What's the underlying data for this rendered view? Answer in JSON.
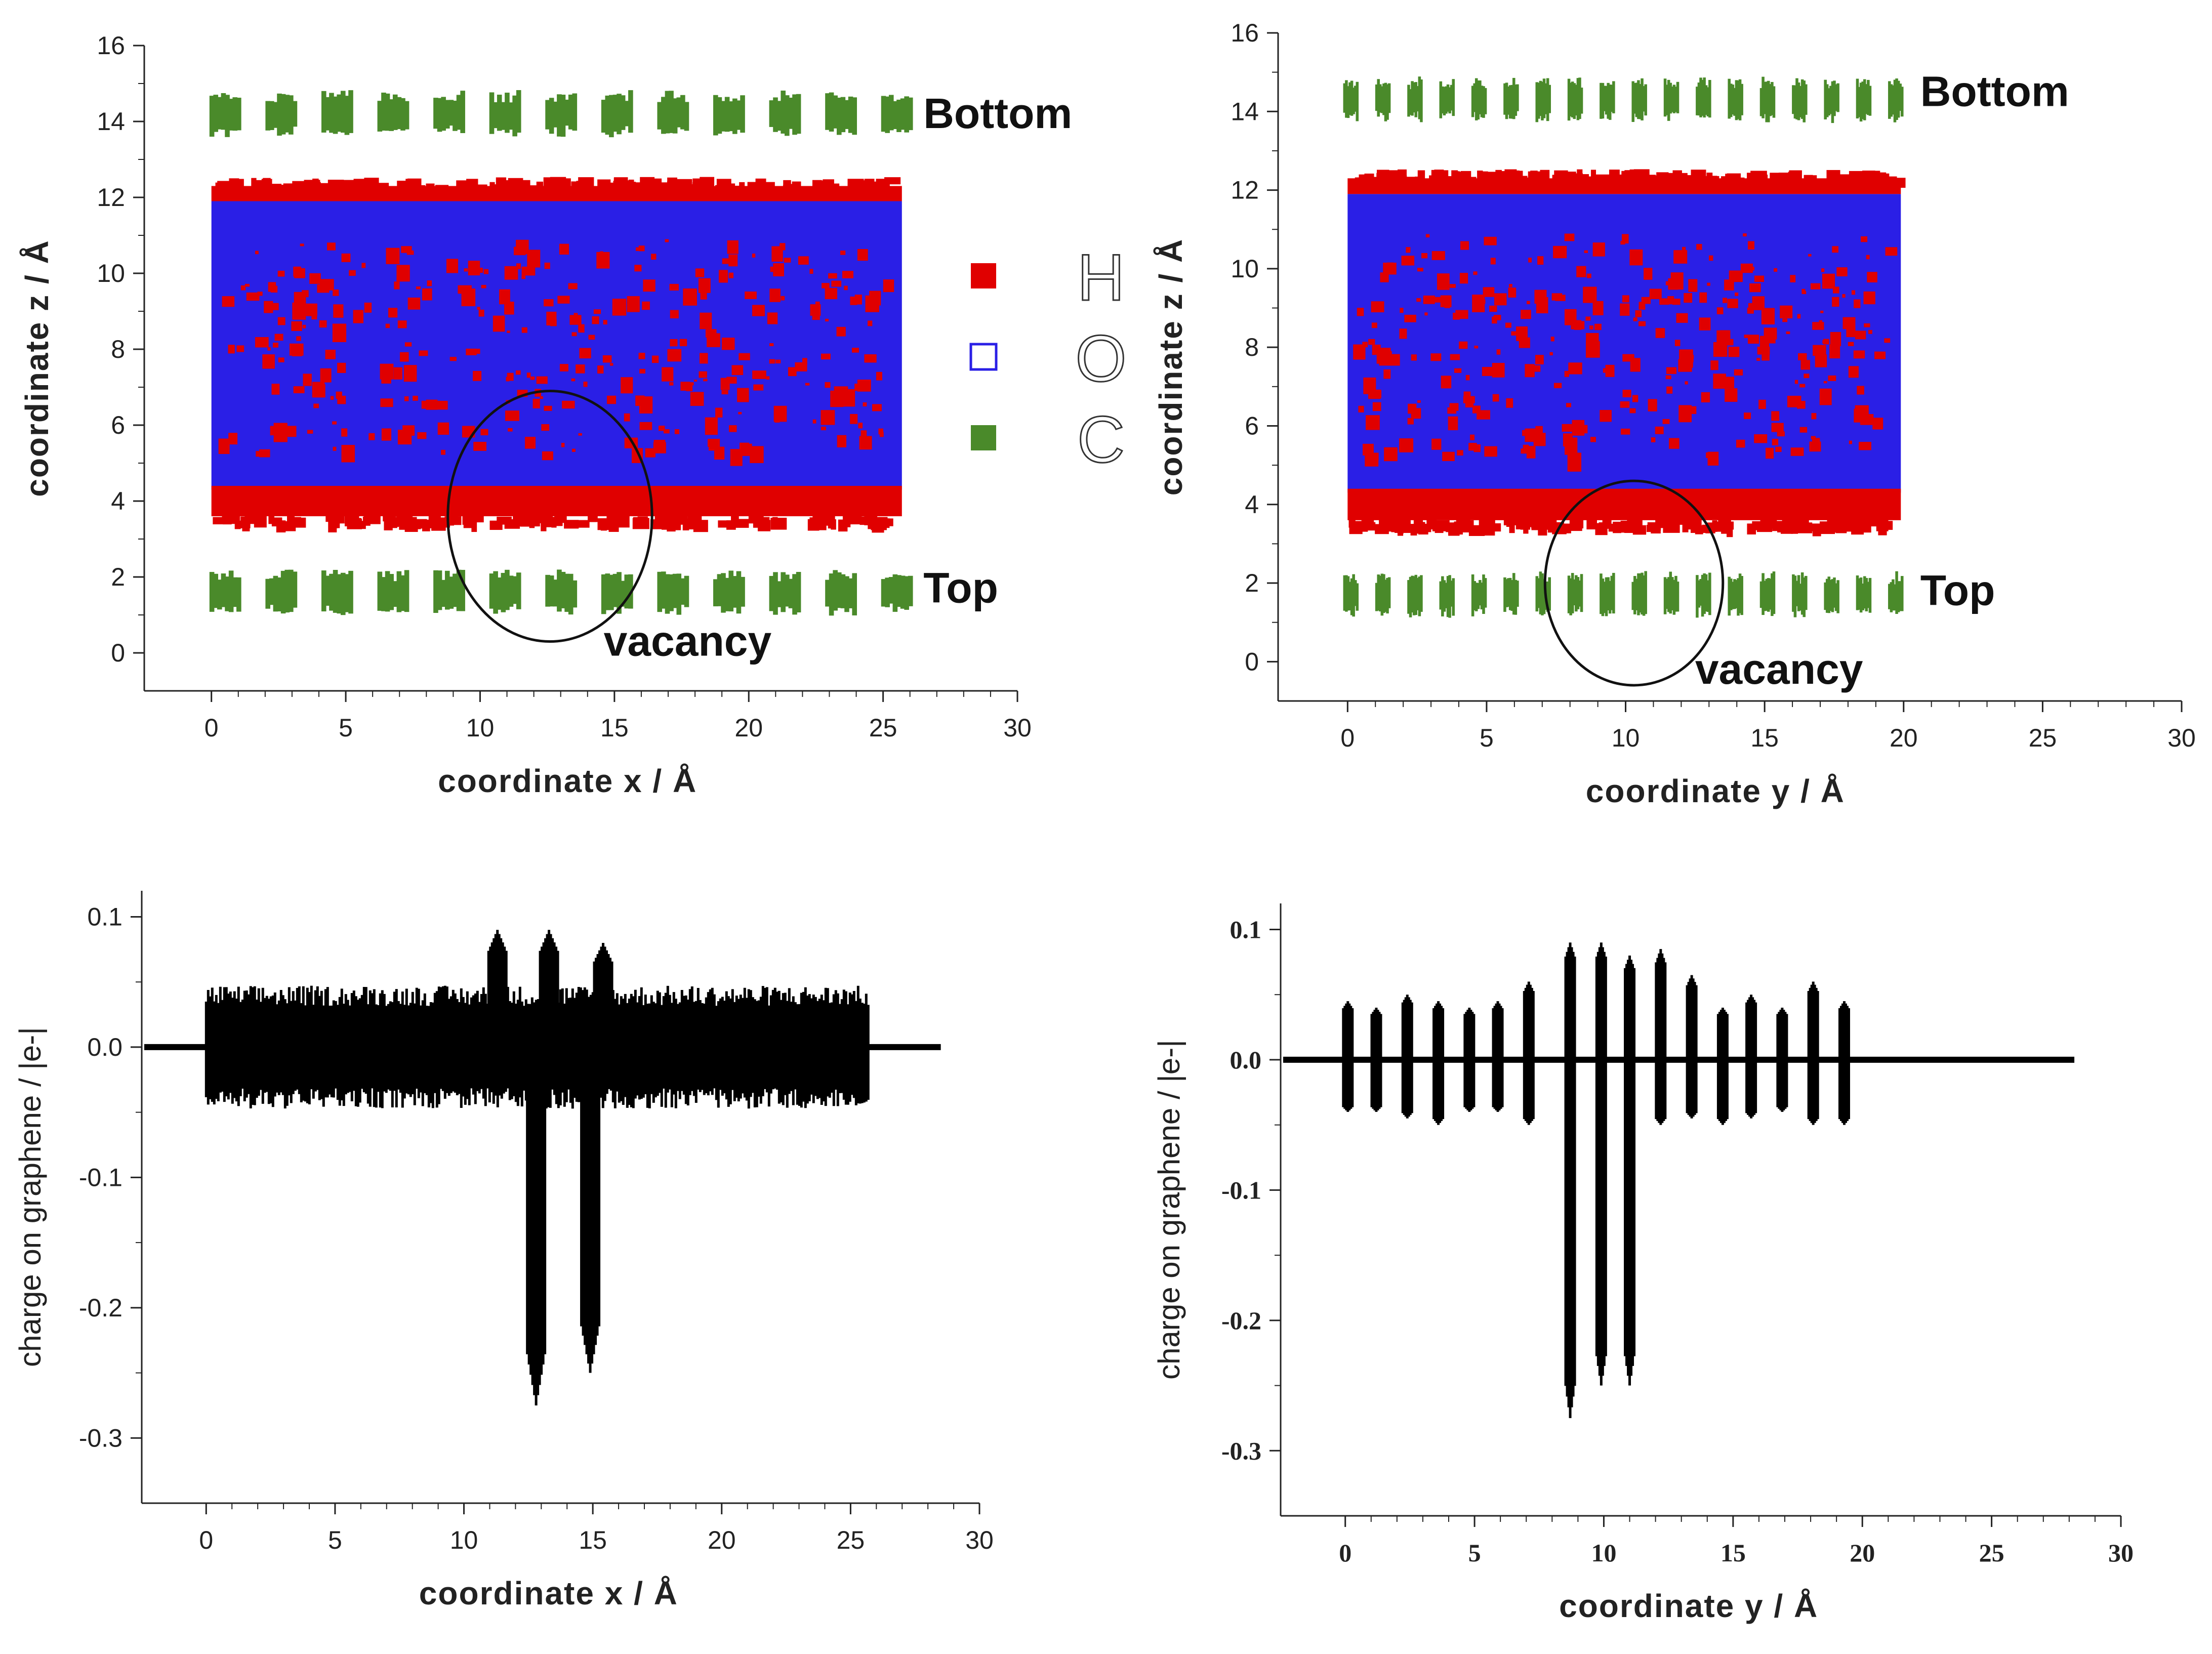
{
  "colors": {
    "hydrogen": "#e00000",
    "oxygen": "#2a1fe6",
    "carbon": "#4a8a2a",
    "axis": "#222222",
    "charge": "#000000"
  },
  "legend": {
    "items": [
      {
        "symbol": "filled-square",
        "color": "#e00000",
        "label": "H"
      },
      {
        "symbol": "open-square",
        "color": "#2a1fe6",
        "label": "O"
      },
      {
        "symbol": "filled-square",
        "color": "#4a8a2a",
        "label": "C"
      }
    ]
  },
  "chart_data": [
    {
      "id": "top-left",
      "type": "scatter",
      "xlabel": "coordinate x / Å",
      "ylabel": "coordinate z / Å",
      "xlim": [
        -2.5,
        30
      ],
      "ylim": [
        -1,
        16
      ],
      "xticks": [
        0,
        5,
        10,
        15,
        20,
        25,
        30
      ],
      "yticks": [
        0,
        2,
        4,
        6,
        8,
        10,
        12,
        14,
        16
      ],
      "water": {
        "x_range": [
          0,
          25.7
        ],
        "red_bottom": [
          3.6,
          4.4
        ],
        "red_top": [
          11.9,
          12.3
        ],
        "blue_range": [
          4.3,
          11.9
        ]
      },
      "graphene_top_layer": {
        "z": 1.6,
        "x_start": 0.5,
        "x_end": 25.5,
        "columns": 13,
        "label": "Top"
      },
      "graphene_bottom_layer": {
        "z": 14.2,
        "x_start": 0.5,
        "x_end": 25.5,
        "columns": 13,
        "label": "Bottom"
      },
      "annotations": [
        {
          "text": "Bottom",
          "x": 26.5,
          "y": 14.2
        },
        {
          "text": "Top",
          "x": 26.5,
          "y": 1.7
        },
        {
          "text": "vacancy",
          "x": 14.6,
          "y": 0.3
        }
      ],
      "vacancy_circle": {
        "cx": 12.6,
        "cy": 3.6,
        "rx": 3.8,
        "ry": 3.3
      }
    },
    {
      "id": "top-right",
      "type": "scatter",
      "xlabel": "coordinate y / Å",
      "ylabel": "coordinate z / Å",
      "xlim": [
        -2.5,
        30
      ],
      "ylim": [
        -1,
        16
      ],
      "xticks": [
        0,
        5,
        10,
        15,
        20,
        25,
        30
      ],
      "yticks": [
        0,
        2,
        4,
        6,
        8,
        10,
        12,
        14,
        16
      ],
      "water": {
        "x_range": [
          0,
          19.9
        ],
        "red_bottom": [
          3.6,
          4.4
        ],
        "red_top": [
          11.9,
          12.3
        ],
        "blue_range": [
          4.3,
          11.9
        ]
      },
      "graphene_top_layer": {
        "z": 1.7,
        "x_start": 0.1,
        "x_end": 19.7,
        "columns": 18,
        "label": "Top"
      },
      "graphene_bottom_layer": {
        "z": 14.3,
        "x_start": 0.1,
        "x_end": 19.7,
        "columns": 18,
        "label": "Bottom"
      },
      "annotations": [
        {
          "text": "Bottom",
          "x": 20.6,
          "y": 14.5
        },
        {
          "text": "Top",
          "x": 20.6,
          "y": 1.8
        },
        {
          "text": "vacancy",
          "x": 12.5,
          "y": -0.2
        }
      ],
      "vacancy_circle": {
        "cx": 10.3,
        "cy": 2.0,
        "rx": 3.2,
        "ry": 2.6
      }
    },
    {
      "id": "bottom-left",
      "type": "line",
      "xlabel": "coordinate x / Å",
      "ylabel": "charge on graphene /  |e-|",
      "xlim": [
        -2.5,
        30
      ],
      "ylim": [
        -0.35,
        0.12
      ],
      "xticks": [
        0,
        5,
        10,
        15,
        20,
        25,
        30
      ],
      "yticks": [
        0.1,
        0.0,
        -0.1,
        -0.2,
        -0.3
      ],
      "ytick_labels": [
        "0.1",
        "0.0",
        "-0.1",
        "-0.2",
        "-0.3"
      ],
      "baseline": {
        "x_start": -2.5,
        "x_end": 28.5,
        "y": 0.0
      },
      "band": {
        "x_start": 0,
        "x_end": 25.7,
        "high": 0.045,
        "low": -0.045
      },
      "peaks": [
        {
          "x": 11.3,
          "max": 0.09,
          "min": -0.01
        },
        {
          "x": 13.3,
          "max": 0.09,
          "min": -0.02
        },
        {
          "x": 15.4,
          "max": 0.08,
          "min": -0.01
        },
        {
          "x": 12.8,
          "max": 0.03,
          "min": -0.275
        },
        {
          "x": 14.9,
          "max": 0.03,
          "min": -0.25
        }
      ]
    },
    {
      "id": "bottom-right",
      "type": "line",
      "xlabel": "coordinate y / Å",
      "ylabel": "charge on graphene /  |e-|",
      "xlim": [
        -2.5,
        30
      ],
      "ylim": [
        -0.35,
        0.12
      ],
      "xticks": [
        0,
        5,
        10,
        15,
        20,
        25,
        30
      ],
      "yticks": [
        0.1,
        0.0,
        -0.1,
        -0.2,
        -0.3
      ],
      "ytick_labels": [
        "0.1",
        "0.0",
        "-0.1",
        "-0.2",
        "-0.3"
      ],
      "baseline": {
        "x_start": -2.5,
        "x_end": 28.2,
        "y": 0.0
      },
      "spikes": [
        {
          "x": 0.1,
          "max": 0.045,
          "min": -0.04
        },
        {
          "x": 1.2,
          "max": 0.04,
          "min": -0.04
        },
        {
          "x": 2.4,
          "max": 0.05,
          "min": -0.045
        },
        {
          "x": 3.6,
          "max": 0.045,
          "min": -0.05
        },
        {
          "x": 4.8,
          "max": 0.04,
          "min": -0.04
        },
        {
          "x": 5.9,
          "max": 0.045,
          "min": -0.04
        },
        {
          "x": 7.1,
          "max": 0.06,
          "min": -0.05
        },
        {
          "x": 8.7,
          "max": 0.09,
          "min": -0.275
        },
        {
          "x": 9.9,
          "max": 0.09,
          "min": -0.25
        },
        {
          "x": 11.0,
          "max": 0.08,
          "min": -0.25
        },
        {
          "x": 12.2,
          "max": 0.085,
          "min": -0.05
        },
        {
          "x": 13.4,
          "max": 0.065,
          "min": -0.045
        },
        {
          "x": 14.6,
          "max": 0.04,
          "min": -0.05
        },
        {
          "x": 15.7,
          "max": 0.05,
          "min": -0.045
        },
        {
          "x": 16.9,
          "max": 0.04,
          "min": -0.04
        },
        {
          "x": 18.1,
          "max": 0.06,
          "min": -0.05
        },
        {
          "x": 19.3,
          "max": 0.045,
          "min": -0.05
        }
      ]
    }
  ]
}
